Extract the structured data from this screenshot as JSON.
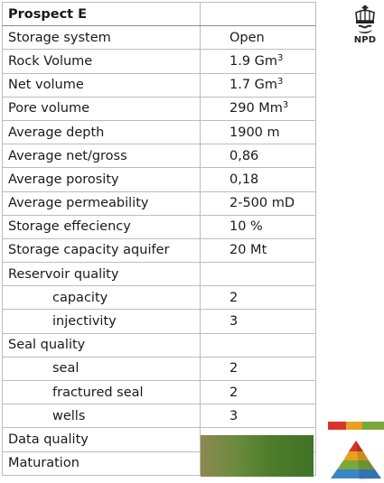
{
  "table": {
    "title": "Prospect E",
    "rows": [
      {
        "label": "Storage system",
        "value": "Open"
      },
      {
        "label": "Rock Volume",
        "value": "1.9 Gm",
        "sup": "3"
      },
      {
        "label": "Net volume",
        "value": "1.7 Gm",
        "sup": "3"
      },
      {
        "label": "Pore volume",
        "value": "290 Mm",
        "sup": "3"
      },
      {
        "label": "Average depth",
        "value": "1900 m"
      },
      {
        "label": "Average net/gross",
        "value": "0,86"
      },
      {
        "label": "Average porosity",
        "value": "0,18"
      },
      {
        "label": "Average permeability",
        "value": "2-500 mD"
      },
      {
        "label": "Storage effeciency",
        "value": "10 %"
      },
      {
        "label": "Storage capacity aquifer",
        "value": "20 Mt"
      },
      {
        "label": "Reservoir quality",
        "value": ""
      },
      {
        "label": "capacity",
        "value": "2"
      },
      {
        "label": "injectivity",
        "value": "3"
      },
      {
        "label": "Seal quality",
        "value": ""
      },
      {
        "label": "seal",
        "value": "2"
      },
      {
        "label": "fractured seal",
        "value": "2"
      },
      {
        "label": "wells",
        "value": "3"
      },
      {
        "label": "Data quality",
        "value": ""
      },
      {
        "label": "Maturation",
        "value": ""
      }
    ]
  },
  "logo": {
    "text": "NPD",
    "icon": "crown-icon"
  },
  "quality_colors": {
    "data_quality": "#4f7d2c",
    "scale": [
      "#d9342b",
      "#e8a020",
      "#7aa83a"
    ]
  }
}
